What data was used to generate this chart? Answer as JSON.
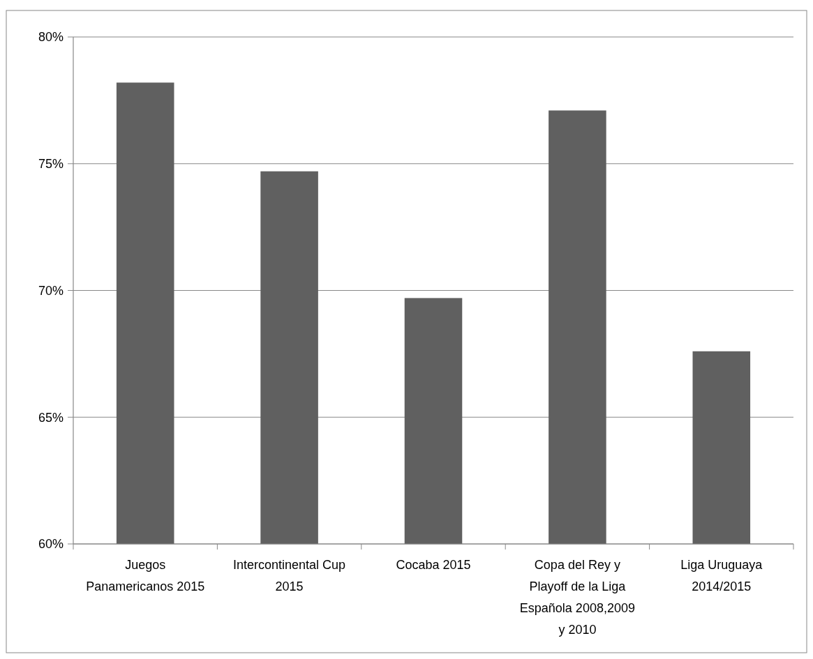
{
  "chart_data": {
    "type": "bar",
    "categories": [
      "Juegos Panamericanos 2015",
      "Intercontinental Cup 2015",
      "Cocaba 2015",
      "Copa del Rey y Playoff de la Liga Española 2008,2009 y 2010",
      "Liga Uruguaya 2014/2015"
    ],
    "values": [
      78.2,
      74.7,
      69.7,
      77.1,
      67.6
    ],
    "color": "#606060",
    "ylim": [
      60,
      80
    ],
    "yticks": [
      {
        "value": 60,
        "label": "60%"
      },
      {
        "value": 65,
        "label": "65%"
      },
      {
        "value": 70,
        "label": "70%"
      },
      {
        "value": 75,
        "label": "75%"
      },
      {
        "value": 80,
        "label": "80%"
      }
    ],
    "grid": "y"
  }
}
